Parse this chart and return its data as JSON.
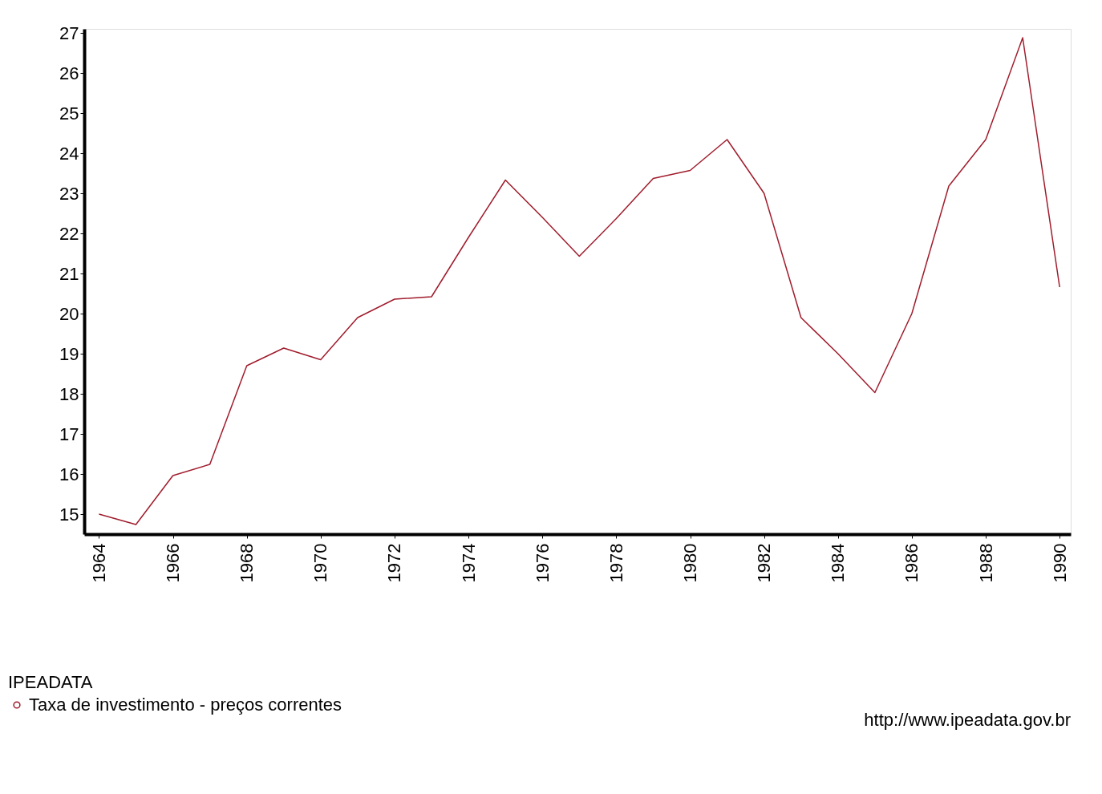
{
  "chart_data": {
    "type": "line",
    "x": [
      1964,
      1965,
      1966,
      1967,
      1968,
      1969,
      1970,
      1971,
      1972,
      1973,
      1974,
      1975,
      1976,
      1977,
      1978,
      1979,
      1980,
      1981,
      1982,
      1983,
      1984,
      1985,
      1986,
      1987,
      1988,
      1989,
      1990
    ],
    "series": [
      {
        "name": "Taxa de investimento - preços correntes",
        "color": "#a01c2c",
        "values": [
          15.0,
          14.74,
          15.96,
          16.24,
          18.7,
          19.14,
          18.85,
          19.9,
          20.36,
          20.42,
          21.9,
          23.33,
          22.4,
          21.43,
          22.37,
          23.37,
          23.57,
          24.34,
          23.0,
          19.9,
          19.0,
          18.03,
          20.0,
          23.18,
          24.34,
          26.88,
          20.66
        ]
      }
    ],
    "legend_title": "IPEADATA",
    "annotations": [
      "http://www.ipeadata.gov.br"
    ],
    "xlim": [
      1963.6,
      1990.3
    ],
    "xticks": [
      1964,
      1966,
      1968,
      1970,
      1972,
      1974,
      1976,
      1978,
      1980,
      1982,
      1984,
      1986,
      1988,
      1990
    ],
    "ylim": [
      14.5,
      27.1
    ],
    "yticks": [
      15,
      16,
      17,
      18,
      19,
      20,
      21,
      22,
      23,
      24,
      25,
      26,
      27
    ],
    "grid": false,
    "legend": "bottom left",
    "marker": "none",
    "line_style": "solid"
  }
}
